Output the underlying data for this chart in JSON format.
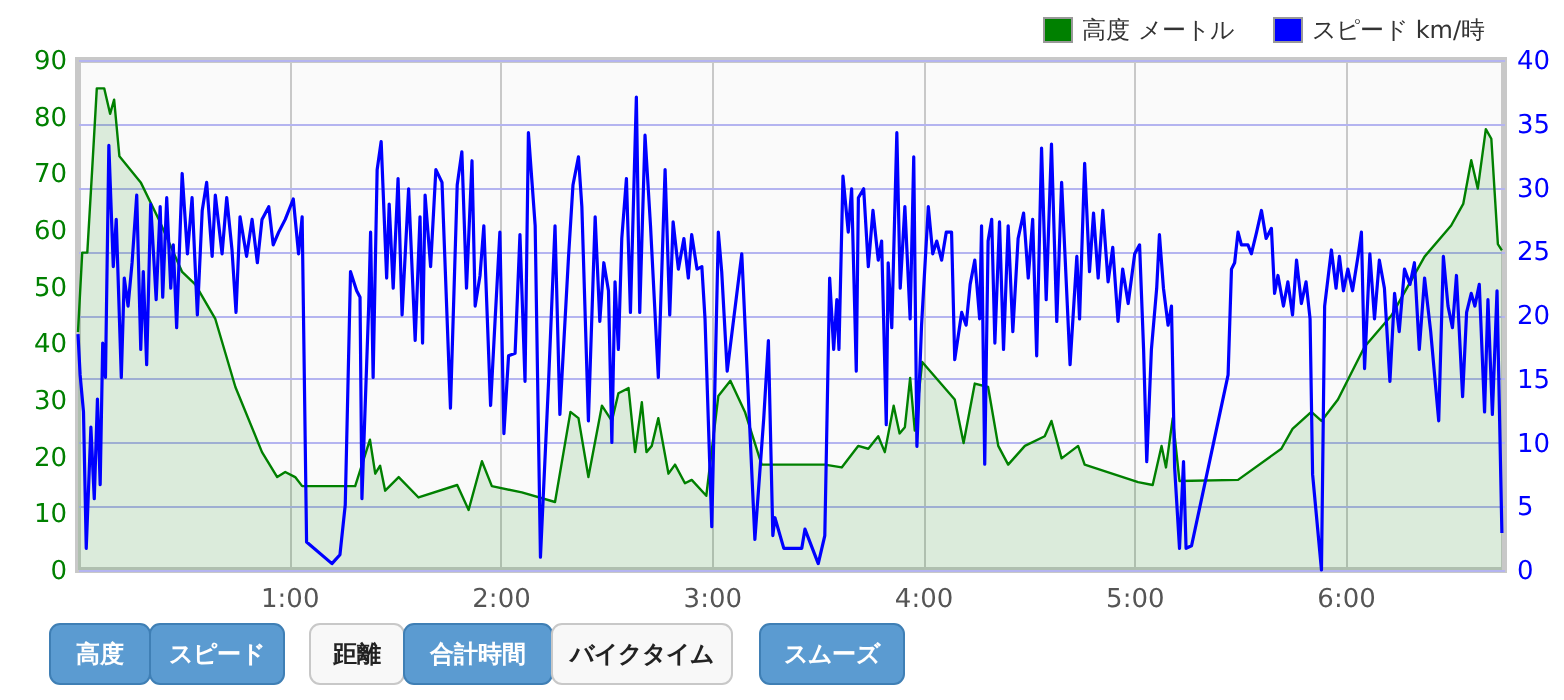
{
  "chart_data": {
    "type": "line",
    "xlim": [
      0,
      6.75
    ],
    "xticks": [
      {
        "value": 1,
        "label": "1:00"
      },
      {
        "value": 2,
        "label": "2:00"
      },
      {
        "value": 3,
        "label": "3:00"
      },
      {
        "value": 4,
        "label": "4:00"
      },
      {
        "value": 5,
        "label": "5:00"
      },
      {
        "value": 6,
        "label": "6:00"
      }
    ],
    "ylim": [
      0,
      90
    ],
    "yticks": [
      0,
      10,
      20,
      30,
      40,
      50,
      60,
      70,
      80,
      90
    ],
    "y2lim": [
      0,
      40
    ],
    "y2ticks": [
      0,
      5,
      10,
      15,
      20,
      25,
      30,
      35,
      40
    ],
    "grid": true,
    "legend": "top right",
    "annotations": [
      "高度",
      "スピード",
      "距離",
      "合計時間",
      "バイクタイム",
      "スムーズ"
    ],
    "series": [
      {
        "name": "高度 メートル",
        "type": "area",
        "color": "#008000",
        "x": [
          0,
          0.02,
          0.044,
          0.067,
          0.089,
          0.124,
          0.152,
          0.171,
          0.196,
          0.297,
          0.382,
          0.493,
          0.555,
          0.65,
          0.745,
          0.871,
          0.943,
          0.981,
          1.028,
          1.061,
          1.312,
          1.382,
          1.407,
          1.43,
          1.454,
          1.518,
          1.612,
          1.795,
          1.849,
          1.912,
          1.959,
          2.101,
          2.258,
          2.331,
          2.369,
          2.416,
          2.48,
          2.527,
          2.558,
          2.606,
          2.637,
          2.669,
          2.691,
          2.716,
          2.747,
          2.795,
          2.826,
          2.873,
          2.905,
          2.974,
          3.031,
          3.088,
          3.157,
          3.236,
          3.535,
          3.615,
          3.693,
          3.741,
          3.788,
          3.819,
          3.861,
          3.889,
          3.914,
          3.939,
          3.961,
          3.996,
          4.15,
          4.192,
          4.245,
          4.308,
          4.356,
          4.403,
          4.482,
          4.576,
          4.608,
          4.656,
          4.734,
          4.765,
          5.018,
          5.087,
          5.129,
          5.15,
          5.182,
          5.214,
          5.491,
          5.696,
          5.749,
          5.838,
          5.886,
          5.964,
          6.09,
          6.217,
          6.374,
          6.5,
          6.557,
          6.595,
          6.626,
          6.664,
          6.69,
          6.721,
          6.74
        ],
        "values": [
          42,
          56,
          56,
          70.6,
          85,
          85,
          80.5,
          83,
          73,
          68.4,
          61.9,
          52.6,
          50.4,
          44.3,
          32.3,
          20.8,
          16.4,
          17.3,
          16.4,
          14.8,
          14.8,
          23,
          17,
          18.4,
          14,
          16.4,
          12.8,
          15,
          10.6,
          19.2,
          14.8,
          13.7,
          12,
          27.9,
          26.8,
          16.4,
          29,
          26.3,
          31.2,
          32.1,
          20.8,
          29.6,
          20.8,
          21.9,
          26.8,
          17,
          18.6,
          15.3,
          15.9,
          13.1,
          30.7,
          33.4,
          27.9,
          18.6,
          18.6,
          18.1,
          21.9,
          21.4,
          23.6,
          20.8,
          29,
          24.1,
          25.2,
          33.9,
          24.6,
          36.7,
          30.1,
          22.4,
          32.9,
          32.3,
          21.9,
          18.6,
          21.9,
          23.6,
          26.3,
          19.7,
          21.9,
          18.6,
          15.5,
          15,
          21.9,
          18.1,
          26.8,
          15.7,
          15.9,
          21.4,
          24.9,
          27.9,
          26.3,
          30.1,
          39.4,
          44.9,
          55.3,
          60.8,
          64.6,
          72.3,
          67.3,
          77.8,
          76.1,
          57.5,
          56.4
        ]
      },
      {
        "name": "スピード km/時",
        "axis": "y2",
        "color": "#0000ff",
        "x": [
          0,
          0.01,
          0.026,
          0.039,
          0.061,
          0.077,
          0.092,
          0.105,
          0.117,
          0.13,
          0.146,
          0.167,
          0.181,
          0.205,
          0.219,
          0.237,
          0.256,
          0.278,
          0.297,
          0.309,
          0.325,
          0.344,
          0.37,
          0.389,
          0.401,
          0.42,
          0.439,
          0.451,
          0.467,
          0.493,
          0.518,
          0.54,
          0.565,
          0.588,
          0.609,
          0.635,
          0.65,
          0.682,
          0.704,
          0.729,
          0.748,
          0.767,
          0.798,
          0.824,
          0.849,
          0.871,
          0.903,
          0.924,
          0.95,
          0.981,
          1.019,
          1.044,
          1.061,
          1.082,
          1.202,
          1.24,
          1.265,
          1.29,
          1.319,
          1.335,
          1.344,
          1.376,
          1.385,
          1.397,
          1.416,
          1.435,
          1.461,
          1.473,
          1.492,
          1.515,
          1.534,
          1.565,
          1.596,
          1.619,
          1.631,
          1.643,
          1.669,
          1.694,
          1.723,
          1.763,
          1.795,
          1.817,
          1.839,
          1.865,
          1.88,
          1.903,
          1.921,
          1.953,
          1.974,
          1.997,
          2.016,
          2.038,
          2.069,
          2.092,
          2.116,
          2.132,
          2.164,
          2.189,
          2.227,
          2.258,
          2.281,
          2.322,
          2.343,
          2.369,
          2.385,
          2.416,
          2.448,
          2.47,
          2.489,
          2.511,
          2.527,
          2.542,
          2.558,
          2.574,
          2.596,
          2.615,
          2.643,
          2.659,
          2.684,
          2.71,
          2.747,
          2.779,
          2.801,
          2.817,
          2.842,
          2.868,
          2.889,
          2.905,
          2.93,
          2.953,
          2.968,
          3.0,
          3.031,
          3.047,
          3.073,
          3.142,
          3.204,
          3.246,
          3.268,
          3.289,
          3.299,
          3.341,
          3.426,
          3.441,
          3.504,
          3.535,
          3.558,
          3.577,
          3.592,
          3.602,
          3.621,
          3.646,
          3.662,
          3.684,
          3.694,
          3.719,
          3.741,
          3.763,
          3.788,
          3.804,
          3.826,
          3.835,
          3.852,
          3.876,
          3.892,
          3.914,
          3.939,
          3.956,
          3.971,
          3.993,
          4.025,
          4.046,
          4.065,
          4.088,
          4.11,
          4.135,
          4.15,
          4.183,
          4.204,
          4.223,
          4.245,
          4.268,
          4.277,
          4.292,
          4.308,
          4.325,
          4.34,
          4.362,
          4.381,
          4.403,
          4.425,
          4.45,
          4.476,
          4.498,
          4.519,
          4.538,
          4.561,
          4.583,
          4.608,
          4.633,
          4.656,
          4.677,
          4.696,
          4.728,
          4.741,
          4.765,
          4.788,
          4.807,
          4.829,
          4.851,
          4.876,
          4.898,
          4.923,
          4.945,
          4.971,
          5.002,
          5.025,
          5.044,
          5.059,
          5.081,
          5.106,
          5.119,
          5.138,
          5.16,
          5.176,
          5.191,
          5.214,
          5.233,
          5.245,
          5.271,
          5.444,
          5.46,
          5.475,
          5.491,
          5.507,
          5.538,
          5.554,
          5.579,
          5.602,
          5.624,
          5.649,
          5.664,
          5.68,
          5.706,
          5.727,
          5.749,
          5.768,
          5.791,
          5.813,
          5.832,
          5.844,
          5.886,
          5.901,
          5.933,
          5.955,
          5.971,
          5.99,
          6.011,
          6.033,
          6.059,
          6.075,
          6.09,
          6.115,
          6.137,
          6.16,
          6.184,
          6.21,
          6.232,
          6.254,
          6.279,
          6.305,
          6.326,
          6.349,
          6.374,
          6.403,
          6.441,
          6.463,
          6.485,
          6.506,
          6.525,
          6.554,
          6.573,
          6.595,
          6.612,
          6.633,
          6.658,
          6.674,
          6.695,
          6.717,
          6.74
        ],
        "values": [
          18.5,
          15.3,
          12.4,
          1.7,
          11.2,
          5.6,
          13.4,
          6.7,
          17.8,
          15.1,
          33.3,
          23.8,
          27.5,
          15.1,
          22.9,
          20.7,
          24.1,
          29.4,
          17.3,
          23.4,
          16.1,
          28.7,
          21.2,
          28.5,
          21.4,
          29.2,
          22.1,
          25.5,
          19,
          31.1,
          24.8,
          29.2,
          20,
          28.2,
          30.4,
          24.6,
          29.4,
          24.8,
          29.2,
          25.1,
          20.2,
          27.7,
          24.6,
          27.5,
          24.1,
          27.5,
          28.5,
          25.5,
          26.5,
          27.5,
          29.1,
          24.8,
          27.7,
          2.2,
          0.5,
          1.2,
          5.1,
          23.4,
          21.9,
          21.4,
          5.6,
          20.7,
          26.5,
          15.1,
          31.4,
          33.6,
          22.9,
          28.7,
          22.1,
          30.7,
          20,
          29.9,
          18,
          27.7,
          17.8,
          29.4,
          23.8,
          31.4,
          30.4,
          12.7,
          30.2,
          32.8,
          22.1,
          32.1,
          20.7,
          23.1,
          27,
          12.9,
          19.5,
          26.5,
          10.7,
          16.8,
          17,
          26.3,
          14.8,
          34.3,
          27,
          1,
          14.6,
          27,
          12.2,
          24.6,
          30.2,
          32.4,
          28.5,
          11.7,
          27.7,
          19.5,
          24.1,
          21.9,
          10,
          22.6,
          17.3,
          26,
          30.7,
          20.2,
          37.1,
          20.2,
          34.1,
          27,
          15.1,
          31.4,
          20,
          27.3,
          23.6,
          26,
          22.9,
          26.3,
          23.6,
          23.8,
          19.7,
          3.4,
          26.5,
          23.4,
          15.6,
          24.8,
          2.4,
          11.9,
          18,
          2.7,
          4.1,
          1.7,
          1.7,
          3.2,
          0.5,
          2.7,
          22.9,
          17.3,
          21.2,
          17.3,
          30.9,
          26.5,
          29.9,
          15.6,
          29.2,
          29.9,
          23.8,
          28.2,
          24.3,
          25.8,
          11.4,
          24.1,
          19,
          34.3,
          22.1,
          28.5,
          19.7,
          32.4,
          9.7,
          19.2,
          28.5,
          24.8,
          25.8,
          24.3,
          26.5,
          26.5,
          16.5,
          20.2,
          19.2,
          22.4,
          24.3,
          19.7,
          27,
          8.3,
          25.8,
          27.5,
          17.8,
          27.3,
          17.3,
          27,
          18.7,
          26,
          28,
          22.9,
          27.5,
          16.8,
          33.1,
          21.2,
          33.4,
          19.5,
          30.4,
          22.9,
          16.1,
          24.6,
          19.7,
          31.9,
          23.4,
          28,
          22.9,
          28.2,
          22.6,
          25.3,
          19.5,
          23.6,
          20.9,
          24.8,
          25.5,
          17.3,
          8.5,
          17.3,
          22.1,
          26.3,
          22.1,
          19.2,
          20.7,
          8,
          1.7,
          8.5,
          1.7,
          1.9,
          15.3,
          23.6,
          24.1,
          26.5,
          25.5,
          25.5,
          24.8,
          26.5,
          28.2,
          26,
          26.8,
          21.7,
          23.1,
          20.7,
          22.6,
          20,
          24.3,
          20.9,
          22.6,
          19.7,
          7.5,
          0,
          20.7,
          25.1,
          22.1,
          24.6,
          21.9,
          23.6,
          21.9,
          24.6,
          26.5,
          15.8,
          24.8,
          19.7,
          24.3,
          22.1,
          14.8,
          21.7,
          18.7,
          23.6,
          22.4,
          24.1,
          17.3,
          22.9,
          18.7,
          11.7,
          24.6,
          20.7,
          19,
          23.1,
          13.6,
          20.2,
          21.7,
          20.7,
          22.4,
          12.4,
          21.2,
          12.2,
          21.9,
          2.9
        ]
      }
    ]
  }
}
